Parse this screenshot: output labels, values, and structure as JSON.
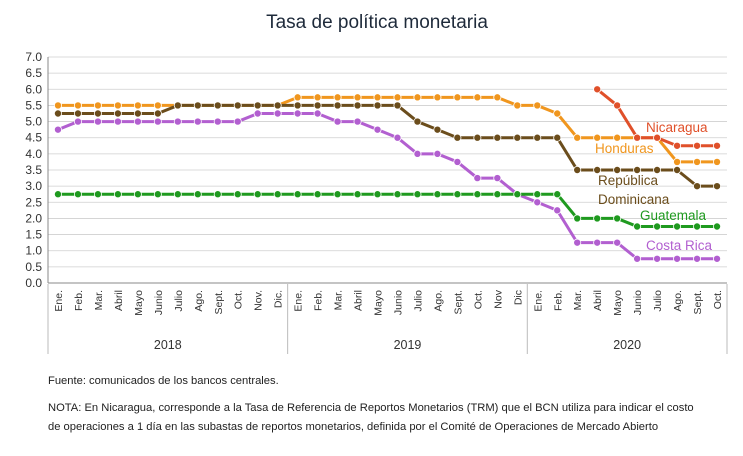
{
  "chart_data": {
    "type": "line",
    "title": "Tasa de política monetaria",
    "xlabel": "",
    "ylabel": "",
    "ylim": [
      0,
      7
    ],
    "yticks": [
      "0.0",
      "0.5",
      "1.0",
      "1.5",
      "2.0",
      "2.5",
      "3.0",
      "3.5",
      "4.0",
      "4.5",
      "5.0",
      "5.5",
      "6.0",
      "6.5",
      "7.0"
    ],
    "grid": true,
    "legend": "labels-on-lines",
    "years": [
      {
        "label": "2018",
        "start": 0,
        "end": 11
      },
      {
        "label": "2019",
        "start": 12,
        "end": 23
      },
      {
        "label": "2020",
        "start": 24,
        "end": 33
      }
    ],
    "categories": [
      "Ene.",
      "Feb.",
      "Mar.",
      "Abril",
      "Mayo",
      "Junio",
      "Julio",
      "Ago.",
      "Sept.",
      "Oct.",
      "Nov.",
      "Dic.",
      "Ene.",
      "Feb.",
      "Mar.",
      "Abril",
      "Mayo",
      "Junio",
      "Julio",
      "Ago.",
      "Sept.",
      "Oct.",
      "Nov",
      "Dic",
      "Ene.",
      "Feb.",
      "Mar.",
      "Abril",
      "Mayo",
      "Junio",
      "Julio",
      "Ago.",
      "Sept.",
      "Oct."
    ],
    "series": [
      {
        "name": "Honduras",
        "color": "#f0961e",
        "label_lines": [
          "Honduras"
        ],
        "values": [
          5.5,
          5.5,
          5.5,
          5.5,
          5.5,
          5.5,
          5.5,
          5.5,
          5.5,
          5.5,
          5.5,
          5.5,
          5.75,
          5.75,
          5.75,
          5.75,
          5.75,
          5.75,
          5.75,
          5.75,
          5.75,
          5.75,
          5.75,
          5.5,
          5.5,
          5.25,
          4.5,
          4.5,
          4.5,
          4.5,
          4.5,
          3.75,
          3.75,
          3.75
        ]
      },
      {
        "name": "República Dominicana",
        "color": "#6b4d1c",
        "label_lines": [
          "República",
          "Dominicana"
        ],
        "values": [
          5.25,
          5.25,
          5.25,
          5.25,
          5.25,
          5.25,
          5.5,
          5.5,
          5.5,
          5.5,
          5.5,
          5.5,
          5.5,
          5.5,
          5.5,
          5.5,
          5.5,
          5.5,
          5.0,
          4.75,
          4.5,
          4.5,
          4.5,
          4.5,
          4.5,
          4.5,
          3.5,
          3.5,
          3.5,
          3.5,
          3.5,
          3.5,
          3.0,
          3.0
        ]
      },
      {
        "name": "Costa Rica",
        "color": "#b25fd0",
        "label_lines": [
          "Costa Rica"
        ],
        "values": [
          4.75,
          5.0,
          5.0,
          5.0,
          5.0,
          5.0,
          5.0,
          5.0,
          5.0,
          5.0,
          5.25,
          5.25,
          5.25,
          5.25,
          5.0,
          5.0,
          4.75,
          4.5,
          4.0,
          4.0,
          3.75,
          3.25,
          3.25,
          2.75,
          2.5,
          2.25,
          1.25,
          1.25,
          1.25,
          0.75,
          0.75,
          0.75,
          0.75,
          0.75
        ]
      },
      {
        "name": "Guatemala",
        "color": "#1f9a1f",
        "label_lines": [
          "Guatemala"
        ],
        "values": [
          2.75,
          2.75,
          2.75,
          2.75,
          2.75,
          2.75,
          2.75,
          2.75,
          2.75,
          2.75,
          2.75,
          2.75,
          2.75,
          2.75,
          2.75,
          2.75,
          2.75,
          2.75,
          2.75,
          2.75,
          2.75,
          2.75,
          2.75,
          2.75,
          2.75,
          2.75,
          2.0,
          2.0,
          2.0,
          1.75,
          1.75,
          1.75,
          1.75,
          1.75
        ]
      },
      {
        "name": "Nicaragua",
        "color": "#e0502a",
        "label_lines": [
          "Nicaragua"
        ],
        "values": [
          null,
          null,
          null,
          null,
          null,
          null,
          null,
          null,
          null,
          null,
          null,
          null,
          null,
          null,
          null,
          null,
          null,
          null,
          null,
          null,
          null,
          null,
          null,
          null,
          null,
          null,
          null,
          6.0,
          5.5,
          4.5,
          4.5,
          4.25,
          4.25,
          4.25
        ]
      }
    ]
  },
  "notes": {
    "fuente": "Fuente: comunicados de los bancos centrales.",
    "nota": "NOTA: En Nicaragua, corresponde a la Tasa de Referencia de Reportos Monetarios (TRM) que el BCN utiliza para indicar el costo de operaciones a 1 día en las subastas de reportos monetarios, definida por el Comité de Operaciones de Mercado Abierto"
  }
}
